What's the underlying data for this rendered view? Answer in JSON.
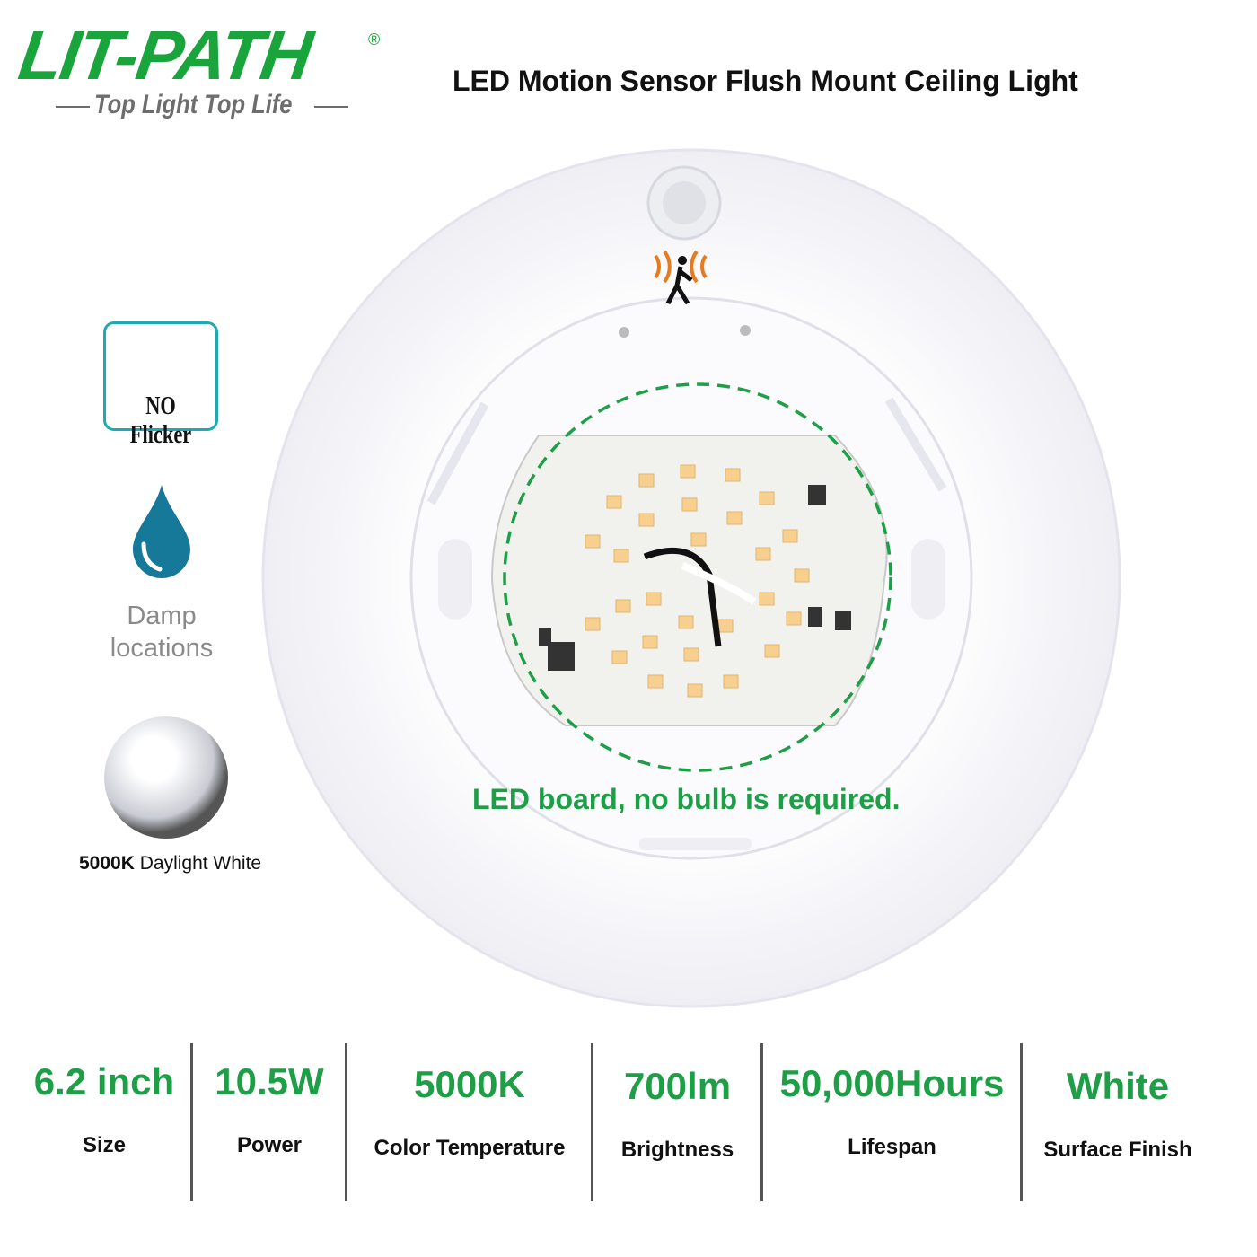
{
  "brand": {
    "name": "LIT-PATH",
    "registered": "®",
    "tagline": "Top Light Top Life",
    "color": "#1aa43c"
  },
  "title": "LED Motion Sensor Flush Mount Ceiling Light",
  "features": [
    {
      "icon": "dimmer-knob-icon",
      "label": "NO Flicker",
      "color": "#1fa9b0"
    },
    {
      "icon": "water-drop-icon",
      "label_line1": "Damp",
      "label_line2": "locations",
      "color": "#16799a"
    },
    {
      "icon": "light-bulb-glow-icon",
      "label_bold": "5000K",
      "label_rest": " Daylight White"
    }
  ],
  "image_caption": "LED board, no bulb is required.",
  "specs": [
    {
      "value": "6.2 inch",
      "label": "Size"
    },
    {
      "value": "10.5W",
      "label": "Power"
    },
    {
      "value": "5000K",
      "label": "Color Temperature"
    },
    {
      "value": "700lm",
      "label": "Brightness"
    },
    {
      "value": "50,000Hours",
      "label": "Lifespan"
    },
    {
      "value": "White",
      "label": "Surface Finish"
    }
  ],
  "accent_color": "#1e9e46"
}
